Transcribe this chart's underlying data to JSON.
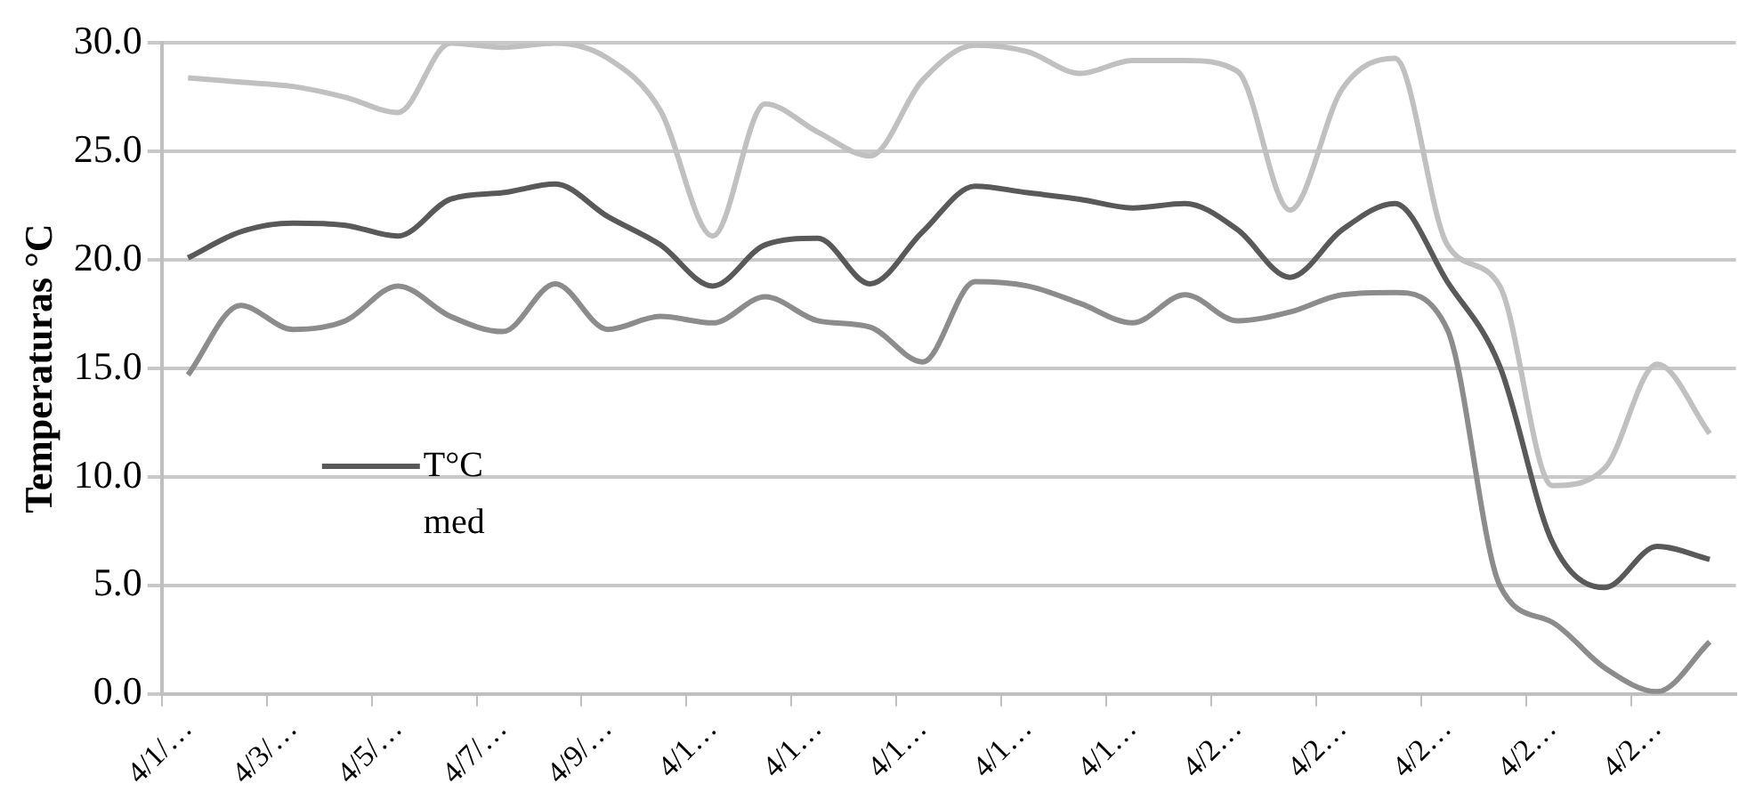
{
  "chart_data": {
    "type": "line",
    "ylabel": "Temperaturas °C",
    "categories": [
      "4/1/…",
      null,
      "4/3/…",
      null,
      "4/5/…",
      null,
      "4/7/…",
      null,
      "4/9/…",
      null,
      "4/1…",
      null,
      "4/1…",
      null,
      "4/1…",
      null,
      "4/1…",
      null,
      "4/1…",
      null,
      "4/2…",
      null,
      "4/2…",
      null,
      "4/2…",
      null,
      "4/2…",
      null,
      "4/2…",
      null
    ],
    "series": [
      {
        "color": "#c0c0c0",
        "values": [
          28.4,
          28.2,
          28.0,
          27.5,
          26.8,
          30.0,
          29.8,
          30.0,
          29.3,
          26.9,
          21.1,
          27.2,
          25.9,
          24.8,
          28.3,
          29.9,
          29.6,
          28.6,
          29.2,
          29.2,
          28.7,
          22.3,
          27.9,
          29.3,
          20.7,
          18.8,
          9.6,
          10.4,
          15.2,
          12.0
        ]
      },
      {
        "name": "T°C med",
        "color": "#595959",
        "values": [
          20.1,
          21.3,
          21.7,
          21.6,
          21.1,
          22.8,
          23.1,
          23.5,
          22.0,
          20.7,
          18.8,
          20.7,
          21.0,
          18.9,
          21.3,
          23.4,
          23.1,
          22.8,
          22.4,
          22.6,
          21.4,
          19.2,
          21.4,
          22.6,
          19.0,
          15.1,
          7.0,
          4.9,
          6.8,
          6.2
        ]
      },
      {
        "color": "#8c8c8c",
        "values": [
          14.7,
          17.9,
          16.8,
          17.2,
          18.8,
          17.4,
          16.7,
          18.9,
          16.8,
          17.4,
          17.1,
          18.3,
          17.2,
          16.9,
          15.3,
          19.0,
          18.8,
          18.0,
          17.1,
          18.4,
          17.2,
          17.6,
          18.4,
          18.5,
          16.8,
          5.0,
          3.3,
          1.2,
          0.1,
          2.4
        ]
      }
    ],
    "ylim": [
      0,
      30
    ],
    "yticks": [
      {
        "value": 0,
        "label": "0.0"
      },
      {
        "value": 5,
        "label": "5.0"
      },
      {
        "value": 10,
        "label": "10.0"
      },
      {
        "value": 15,
        "label": "15.0"
      },
      {
        "value": 20,
        "label": "20.0"
      },
      {
        "value": 25,
        "label": "25.0"
      },
      {
        "value": 30,
        "label": "30.0"
      }
    ],
    "grid": "y",
    "legend": "left",
    "marker": "none",
    "line_style": "solid"
  }
}
